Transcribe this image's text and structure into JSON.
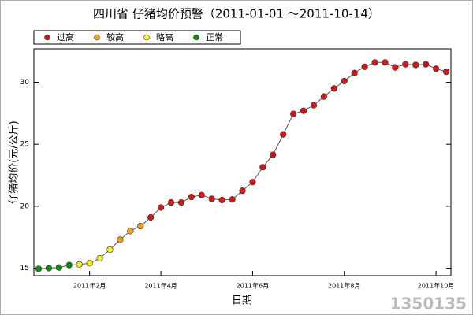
{
  "chart_data": {
    "type": "line",
    "title": "四川省 仔猪均价预警（2011-01-01 ～2011-10-14）",
    "x_label": "日期",
    "y_label": "仔猪均价(元/公斤)",
    "watermark": "1350135",
    "legend_items": [
      {
        "name": "过高",
        "color": "#d01818"
      },
      {
        "name": "较高",
        "color": "#f0a020"
      },
      {
        "name": "略高",
        "color": "#f4f020"
      },
      {
        "name": "正常",
        "color": "#108a10"
      }
    ],
    "categories": [
      null,
      null,
      null,
      null,
      null,
      "2011年2月",
      null,
      null,
      null,
      null,
      null,
      null,
      "2011年4月",
      null,
      null,
      null,
      null,
      null,
      null,
      null,
      null,
      "2011年6月",
      null,
      null,
      null,
      null,
      null,
      null,
      null,
      null,
      "2011年8月",
      null,
      null,
      null,
      null,
      null,
      null,
      null,
      null,
      "2011年10月",
      null
    ],
    "series": [
      {
        "color": "#555555",
        "values": [
          14.95,
          15.0,
          15.05,
          15.25,
          15.3,
          15.4,
          15.8,
          16.5,
          17.3,
          18.0,
          18.4,
          19.1,
          19.9,
          20.3,
          20.3,
          20.75,
          20.9,
          20.6,
          20.5,
          20.55,
          21.25,
          21.95,
          23.15,
          24.15,
          25.8,
          27.45,
          27.7,
          28.15,
          28.85,
          29.5,
          30.1,
          30.75,
          31.25,
          31.6,
          31.6,
          31.2,
          31.45,
          31.4,
          31.45,
          31.1,
          30.85
        ],
        "marker_colors": [
          "#108a10",
          "#108a10",
          "#108a10",
          "#108a10",
          "#f4f020",
          "#f4f020",
          "#f4f020",
          "#f4f020",
          "#f0a020",
          "#f0a020",
          "#f0a020",
          "#d01818",
          "#d01818",
          "#d01818",
          "#d01818",
          "#d01818",
          "#d01818",
          "#d01818",
          "#d01818",
          "#d01818",
          "#d01818",
          "#d01818",
          "#d01818",
          "#d01818",
          "#d01818",
          "#d01818",
          "#d01818",
          "#d01818",
          "#d01818",
          "#d01818",
          "#d01818",
          "#d01818",
          "#d01818",
          "#d01818",
          "#d01818",
          "#d01818",
          "#d01818",
          "#d01818",
          "#d01818",
          "#d01818",
          "#d01818"
        ]
      }
    ],
    "ylim": [
      14.4,
      32.7
    ],
    "yticks": [
      15,
      20,
      25,
      30
    ]
  }
}
